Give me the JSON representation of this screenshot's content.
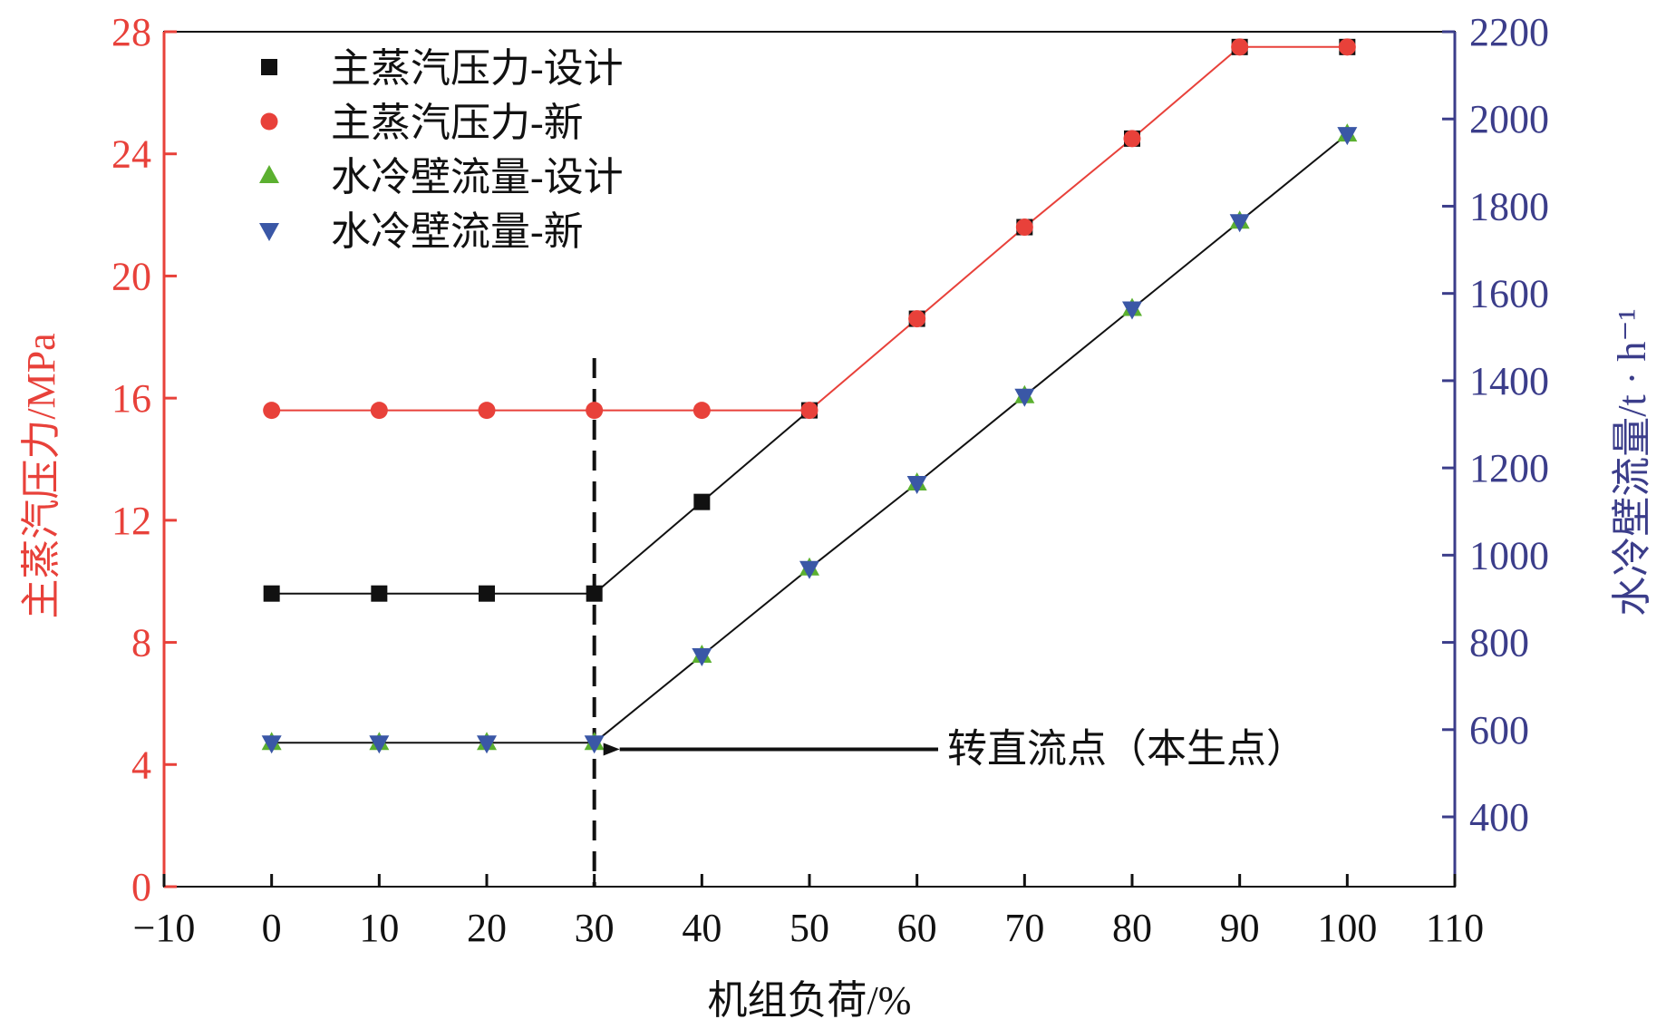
{
  "chart_data": {
    "type": "line",
    "x_axis": {
      "label": "机组负荷/%",
      "range": [
        -10,
        110
      ],
      "ticks": [
        -10,
        0,
        10,
        20,
        30,
        40,
        50,
        60,
        70,
        80,
        90,
        100,
        110
      ],
      "tick_labels": [
        "−10",
        "0",
        "10",
        "20",
        "30",
        "40",
        "50",
        "60",
        "70",
        "80",
        "90",
        "100",
        "110"
      ]
    },
    "y_left": {
      "label": "主蒸汽压力/MPa",
      "range": [
        0,
        28
      ],
      "ticks": [
        0,
        4,
        8,
        12,
        16,
        20,
        24,
        28
      ],
      "tick_labels": [
        "0",
        "4",
        "8",
        "12",
        "16",
        "20",
        "24",
        "28"
      ],
      "color": "#e8413a"
    },
    "y_right": {
      "label": "水冷壁流量/t · h⁻¹",
      "range": [
        240,
        2200
      ],
      "ticks": [
        400,
        600,
        800,
        1000,
        1200,
        1400,
        1600,
        1800,
        2000,
        2200
      ],
      "tick_labels": [
        "400",
        "600",
        "800",
        "1000",
        "1200",
        "1400",
        "1600",
        "1800",
        "2000",
        "2200"
      ],
      "color": "#3b3d8a"
    },
    "x": [
      0,
      10,
      20,
      30,
      40,
      50,
      60,
      70,
      80,
      90,
      100
    ],
    "series": [
      {
        "name": "主蒸汽压力-设计",
        "axis": "left",
        "marker": "square",
        "marker_color": "#111111",
        "line_color": "#111111",
        "values": [
          9.6,
          9.6,
          9.6,
          9.6,
          12.6,
          15.6,
          18.6,
          21.6,
          24.5,
          27.5,
          27.5
        ]
      },
      {
        "name": "主蒸汽压力-新",
        "axis": "left",
        "marker": "circle",
        "marker_color": "#e8413a",
        "line_color": "#e8413a",
        "values": [
          15.6,
          15.6,
          15.6,
          15.6,
          15.6,
          15.6,
          18.6,
          21.6,
          24.5,
          27.5,
          27.5
        ]
      },
      {
        "name": "水冷壁流量-设计",
        "axis": "right",
        "marker": "triangle-up",
        "marker_color": "#5bb030",
        "line_color": "#111111",
        "values": [
          570,
          570,
          570,
          570,
          770,
          970,
          1165,
          1365,
          1565,
          1765,
          1965
        ]
      },
      {
        "name": "水冷壁流量-新",
        "axis": "right",
        "marker": "triangle-down",
        "marker_color": "#3a57a6",
        "line_color": "#111111",
        "values": [
          570,
          570,
          570,
          570,
          770,
          970,
          1165,
          1365,
          1565,
          1765,
          1965
        ]
      }
    ],
    "reference_line": {
      "x": 30,
      "style": "dashed"
    },
    "annotation": {
      "text": "转直流点（本生点）",
      "points_to_x": 30,
      "points_to_left_y": 4.5
    },
    "legend_position": "top-left"
  }
}
